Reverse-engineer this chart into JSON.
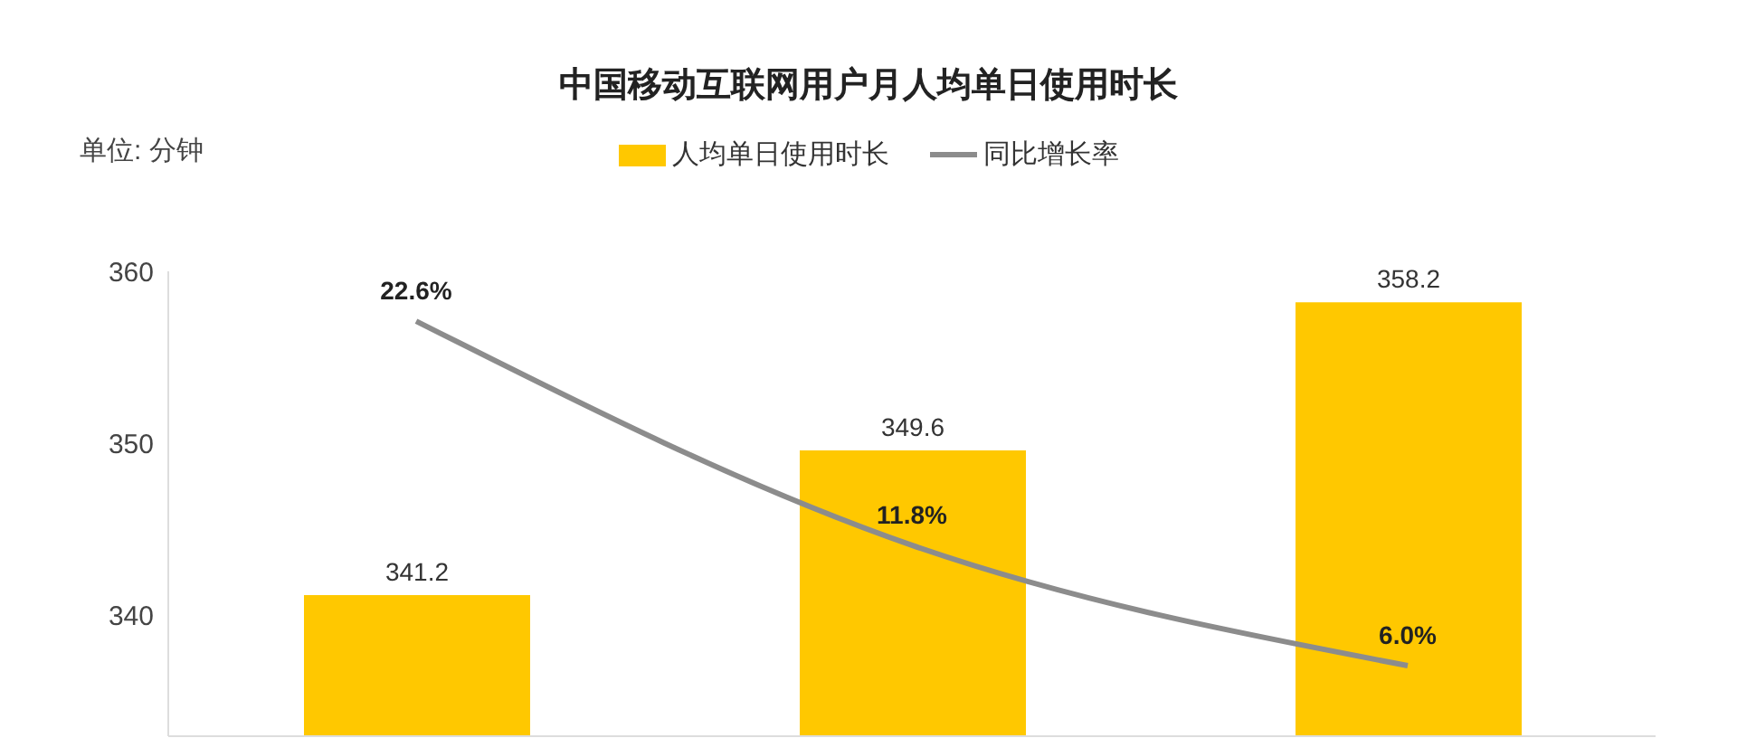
{
  "chart_data": {
    "type": "bar",
    "title": "中国移动互联网用户月人均单日使用时长",
    "ylabel": "单位: 分钟",
    "categories": [
      null,
      null,
      null
    ],
    "series": [
      {
        "name": "人均单日使用时长",
        "color": "#ffc800",
        "values": [
          341.2,
          349.6,
          358.2
        ],
        "value_labels": [
          "341.2",
          "349.6",
          "358.2"
        ]
      },
      {
        "name": "同比增长率",
        "type": "line",
        "axis": "y2",
        "color": "#8c8c8c",
        "values": [
          22.6,
          11.8,
          6.0
        ],
        "value_labels": [
          "22.6%",
          "11.8%",
          "6.0%"
        ]
      }
    ],
    "ylim": [
      333,
      360
    ],
    "yticks": [
      340,
      350,
      360
    ],
    "grid": false,
    "legend": "top",
    "marker": "none"
  }
}
